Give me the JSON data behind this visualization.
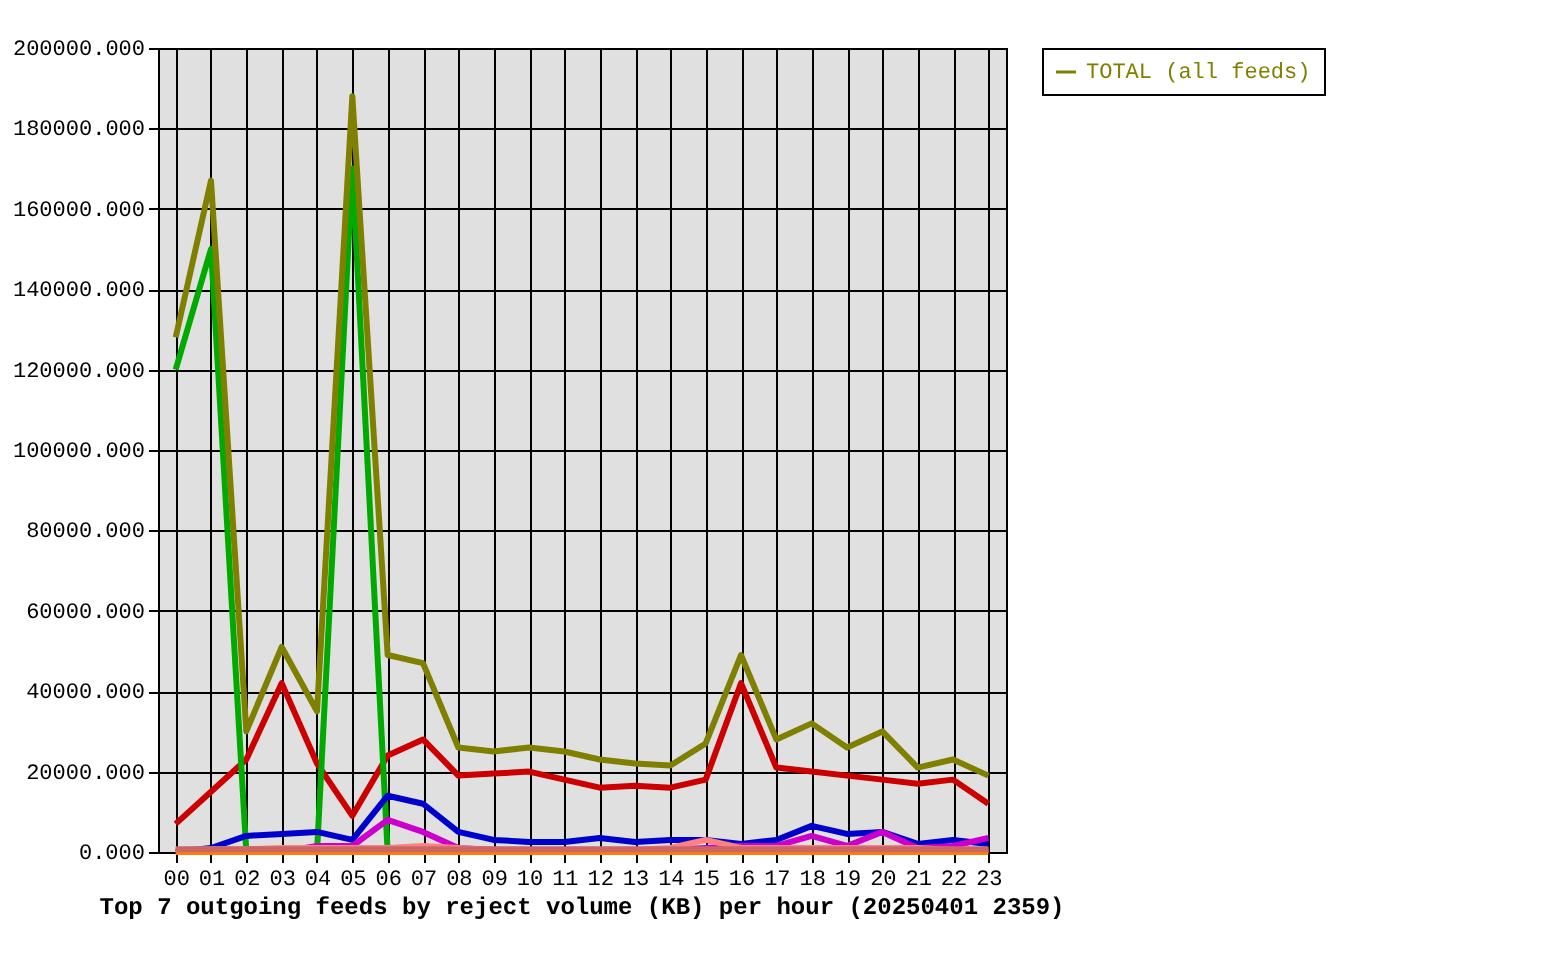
{
  "chart_data": {
    "type": "line",
    "title": "Top 7 outgoing feeds by reject volume (KB) per hour (20250401 2359)",
    "categories": [
      "00",
      "01",
      "02",
      "03",
      "04",
      "05",
      "06",
      "07",
      "08",
      "09",
      "10",
      "11",
      "12",
      "13",
      "14",
      "15",
      "16",
      "17",
      "18",
      "19",
      "20",
      "21",
      "22",
      "23"
    ],
    "series": [
      {
        "color": "#cc0000",
        "values": [
          7000,
          15000,
          23000,
          42000,
          22000,
          9000,
          24000,
          28000,
          19000,
          19500,
          20000,
          18000,
          16000,
          16500,
          16000,
          18000,
          42000,
          21000,
          20000,
          19000,
          18000,
          17000,
          18000,
          12000
        ]
      },
      {
        "color": "#00aa00",
        "values": [
          120000,
          150000,
          0,
          null,
          0,
          170000,
          0,
          null,
          null,
          null,
          null,
          null,
          null,
          null,
          null,
          null,
          null,
          null,
          null,
          null,
          null,
          null,
          null,
          null
        ]
      },
      {
        "color": "#0000cc",
        "values": [
          0,
          1000,
          4000,
          4500,
          5000,
          3000,
          14000,
          12000,
          5000,
          3000,
          2500,
          2500,
          3500,
          2500,
          3000,
          3000,
          2000,
          3000,
          6500,
          4500,
          5000,
          2000,
          3000,
          2000
        ]
      },
      {
        "color": "#cc00cc",
        "values": [
          null,
          null,
          0,
          0,
          1500,
          1500,
          8000,
          5000,
          1000,
          500,
          500,
          500,
          500,
          500,
          500,
          1000,
          1500,
          1500,
          4000,
          1500,
          5000,
          1000,
          1500,
          3500
        ]
      },
      {
        "color": "#ff8080",
        "values": [
          500,
          700,
          700,
          1000,
          1000,
          1000,
          1000,
          1500,
          1000,
          500,
          500,
          500,
          500,
          500,
          1000,
          3000,
          1000,
          1000,
          1000,
          1000,
          1000,
          1000,
          500,
          500
        ]
      },
      {
        "color": "#ff8000",
        "values": [
          0,
          0,
          0,
          0,
          0,
          0,
          0,
          0,
          0,
          0,
          0,
          0,
          0,
          0,
          0,
          0,
          0,
          0,
          0,
          0,
          0,
          0,
          0,
          0
        ]
      },
      {
        "color": "#cc6666",
        "values": [
          700,
          700,
          700,
          700,
          700,
          700,
          700,
          700,
          700,
          700,
          700,
          700,
          700,
          700,
          700,
          700,
          700,
          700,
          700,
          700,
          700,
          700,
          700,
          700
        ]
      },
      {
        "name": "TOTAL (all feeds)",
        "color": "#808000",
        "values": [
          128000,
          167000,
          30000,
          51000,
          35000,
          188000,
          49000,
          47000,
          26000,
          25000,
          26000,
          25000,
          23000,
          22000,
          21500,
          27000,
          49000,
          28000,
          32000,
          26000,
          30000,
          21000,
          23000,
          19000
        ]
      }
    ],
    "ylim": [
      0,
      200000
    ],
    "yticks": [
      {
        "value": 0,
        "label": "0.000"
      },
      {
        "value": 20000,
        "label": "20000.000"
      },
      {
        "value": 40000,
        "label": "40000.000"
      },
      {
        "value": 60000,
        "label": "60000.000"
      },
      {
        "value": 80000,
        "label": "80000.000"
      },
      {
        "value": 100000,
        "label": "100000.000"
      },
      {
        "value": 120000,
        "label": "120000.000"
      },
      {
        "value": 140000,
        "label": "140000.000"
      },
      {
        "value": 160000,
        "label": "160000.000"
      },
      {
        "value": 180000,
        "label": "180000.000"
      },
      {
        "value": 200000,
        "label": "200000.000"
      }
    ],
    "grid": true,
    "legend": "top right",
    "marker": "none",
    "line_style": "solid"
  }
}
